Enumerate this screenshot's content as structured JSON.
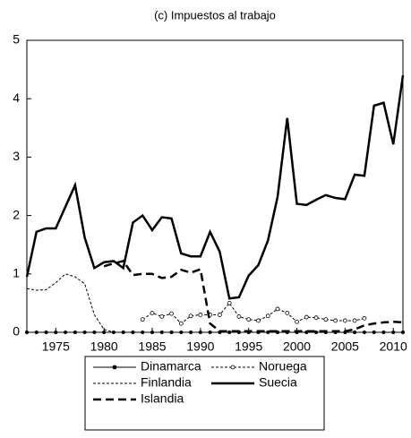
{
  "chart_data": {
    "type": "line",
    "title": "(c) Impuestos al trabajo",
    "x": [
      1972,
      1973,
      1974,
      1975,
      1976,
      1977,
      1978,
      1979,
      1980,
      1981,
      1982,
      1983,
      1984,
      1985,
      1986,
      1987,
      1988,
      1989,
      1990,
      1991,
      1992,
      1993,
      1994,
      1995,
      1996,
      1997,
      1998,
      1999,
      2000,
      2001,
      2002,
      2003,
      2004,
      2005,
      2006,
      2007,
      2008,
      2009,
      2010,
      2011
    ],
    "xlim": [
      1972,
      2011
    ],
    "xticks": [
      1975,
      1980,
      1985,
      1990,
      1995,
      2000,
      2005,
      2010
    ],
    "ylim": [
      0,
      5
    ],
    "yticks": [
      0,
      1,
      2,
      3,
      4,
      5
    ],
    "series": [
      {
        "name": "Dinamarca",
        "color": "#000000",
        "dash": "solid",
        "width": 1,
        "marker": "dot",
        "values": [
          0,
          0,
          0,
          0,
          0,
          0,
          0,
          0,
          0,
          0,
          0,
          0,
          0,
          0,
          0,
          0,
          0,
          0,
          0,
          0,
          0,
          0,
          0,
          0,
          0,
          0,
          0,
          0,
          0,
          0,
          0,
          0,
          0,
          0,
          0,
          0,
          0,
          0,
          0,
          0
        ]
      },
      {
        "name": "Noruega",
        "color": "#000000",
        "dash": "dashed",
        "width": 1,
        "marker": "circle",
        "values": [
          null,
          null,
          null,
          null,
          null,
          null,
          null,
          null,
          null,
          null,
          null,
          null,
          0.22,
          0.33,
          0.27,
          0.32,
          0.15,
          0.28,
          0.3,
          0.3,
          0.3,
          0.5,
          0.27,
          0.22,
          0.2,
          0.28,
          0.4,
          0.33,
          0.18,
          0.26,
          0.25,
          0.22,
          0.2,
          0.2,
          0.2,
          0.24,
          null,
          null,
          null,
          null
        ]
      },
      {
        "name": "Finlandia",
        "color": "#000000",
        "dash": "dashed",
        "width": 1,
        "marker": "none",
        "values": [
          0.75,
          0.72,
          0.73,
          0.85,
          1.0,
          0.95,
          0.83,
          0.3,
          0.05,
          0,
          0,
          0,
          0,
          0,
          0,
          0,
          0,
          0,
          0,
          0,
          0,
          0,
          0,
          0,
          0,
          0,
          0,
          0,
          0,
          0,
          0,
          0,
          0,
          0,
          0,
          0,
          0,
          0,
          0,
          0
        ]
      },
      {
        "name": "Suecia",
        "color": "#000000",
        "dash": "solid",
        "width": 2.5,
        "marker": "none",
        "values": [
          0.95,
          1.72,
          1.78,
          1.78,
          2.15,
          2.52,
          1.62,
          1.1,
          1.2,
          1.22,
          1.1,
          1.88,
          2.0,
          1.75,
          1.97,
          1.95,
          1.35,
          1.3,
          1.3,
          1.72,
          1.38,
          0.58,
          0.6,
          0.97,
          1.15,
          1.57,
          2.32,
          3.67,
          2.2,
          2.18,
          2.27,
          2.35,
          2.3,
          2.28,
          2.7,
          2.68,
          3.88,
          3.93,
          3.22,
          4.4
        ]
      },
      {
        "name": "Islandia",
        "color": "#000000",
        "dash": "longdash",
        "width": 2.5,
        "marker": "none",
        "values": [
          null,
          null,
          null,
          null,
          null,
          null,
          null,
          null,
          1.13,
          1.18,
          1.22,
          0.98,
          1.0,
          1.0,
          0.93,
          0.95,
          1.07,
          1.02,
          1.08,
          0.15,
          0.02,
          0.02,
          0.02,
          0.02,
          0.02,
          0.02,
          0.02,
          0.02,
          0.02,
          0.02,
          0.02,
          0.02,
          0.02,
          0.02,
          0.05,
          0.12,
          0.15,
          0.17,
          0.18,
          0.17
        ]
      }
    ]
  }
}
